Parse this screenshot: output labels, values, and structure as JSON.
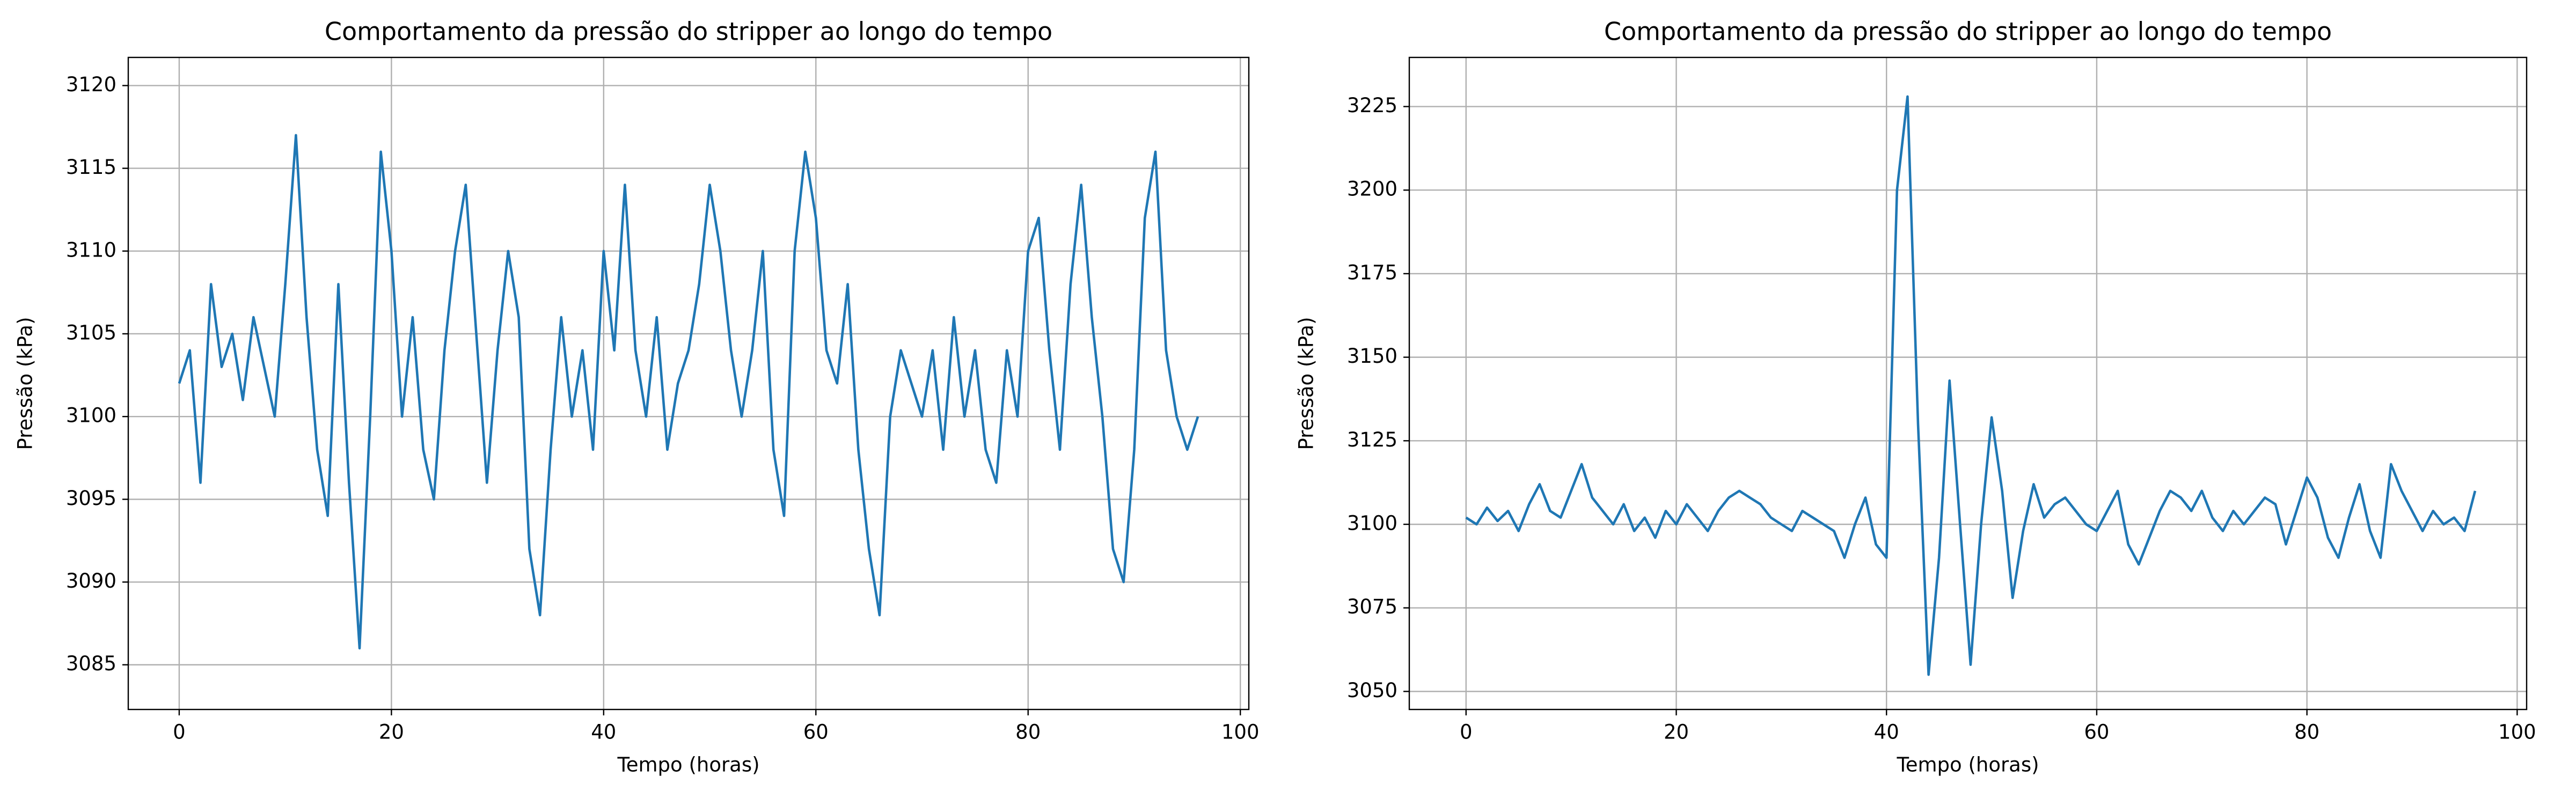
{
  "chart_data": [
    {
      "type": "line",
      "title": "Comportamento da pressão do stripper ao longo do tempo",
      "xlabel": "Tempo (horas)",
      "ylabel": "Pressão (kPa)",
      "x": [
        0,
        1,
        2,
        3,
        4,
        5,
        6,
        7,
        8,
        9,
        10,
        11,
        12,
        13,
        14,
        15,
        16,
        17,
        18,
        19,
        20,
        21,
        22,
        23,
        24,
        25,
        26,
        27,
        28,
        29,
        30,
        31,
        32,
        33,
        34,
        35,
        36,
        37,
        38,
        39,
        40,
        41,
        42,
        43,
        44,
        45,
        46,
        47,
        48,
        49,
        50,
        51,
        52,
        53,
        54,
        55,
        56,
        57,
        58,
        59,
        60,
        61,
        62,
        63,
        64,
        65,
        66,
        67,
        68,
        69,
        70,
        71,
        72,
        73,
        74,
        75,
        76,
        77,
        78,
        79,
        80,
        81,
        82,
        83,
        84,
        85,
        86,
        87,
        88,
        89,
        90,
        91,
        92,
        93,
        94,
        95,
        96
      ],
      "series": [
        {
          "color": "#1f77b4",
          "values": [
            3102,
            3104,
            3096,
            3108,
            3103,
            3105,
            3101,
            3106,
            3103,
            3100,
            3108,
            3117,
            3106,
            3098,
            3094,
            3108,
            3096,
            3086,
            3100,
            3116,
            3110,
            3100,
            3106,
            3098,
            3095,
            3104,
            3110,
            3114,
            3105,
            3096,
            3104,
            3110,
            3106,
            3092,
            3088,
            3098,
            3106,
            3100,
            3104,
            3098,
            3110,
            3104,
            3114,
            3104,
            3100,
            3106,
            3098,
            3102,
            3104,
            3108,
            3114,
            3110,
            3104,
            3100,
            3104,
            3110,
            3098,
            3094,
            3110,
            3116,
            3112,
            3104,
            3102,
            3108,
            3098,
            3092,
            3088,
            3100,
            3104,
            3102,
            3100,
            3104,
            3098,
            3106,
            3100,
            3104,
            3098,
            3096,
            3104,
            3100,
            3110,
            3112,
            3104,
            3098,
            3108,
            3114,
            3106,
            3100,
            3092,
            3090,
            3098,
            3112,
            3116,
            3104,
            3100,
            3098,
            3100
          ]
        }
      ],
      "xlim": [
        -4.8,
        100.8
      ],
      "xticks": [
        0,
        20,
        40,
        60,
        80,
        100
      ],
      "ylim": [
        3082.3,
        3121.7
      ],
      "yticks": [
        3085,
        3090,
        3095,
        3100,
        3105,
        3110,
        3115,
        3120
      ],
      "grid": true
    },
    {
      "type": "line",
      "title": "Comportamento da pressão do stripper ao longo do tempo",
      "xlabel": "Tempo (horas)",
      "ylabel": "Pressão (kPa)",
      "x": [
        0,
        1,
        2,
        3,
        4,
        5,
        6,
        7,
        8,
        9,
        10,
        11,
        12,
        13,
        14,
        15,
        16,
        17,
        18,
        19,
        20,
        21,
        22,
        23,
        24,
        25,
        26,
        27,
        28,
        29,
        30,
        31,
        32,
        33,
        34,
        35,
        36,
        37,
        38,
        39,
        40,
        41,
        42,
        43,
        44,
        45,
        46,
        47,
        48,
        49,
        50,
        51,
        52,
        53,
        54,
        55,
        56,
        57,
        58,
        59,
        60,
        61,
        62,
        63,
        64,
        65,
        66,
        67,
        68,
        69,
        70,
        71,
        72,
        73,
        74,
        75,
        76,
        77,
        78,
        79,
        80,
        81,
        82,
        83,
        84,
        85,
        86,
        87,
        88,
        89,
        90,
        91,
        92,
        93,
        94,
        95,
        96
      ],
      "series": [
        {
          "color": "#1f77b4",
          "values": [
            3102,
            3100,
            3105,
            3101,
            3104,
            3098,
            3106,
            3112,
            3104,
            3102,
            3110,
            3118,
            3108,
            3104,
            3100,
            3106,
            3098,
            3102,
            3096,
            3104,
            3100,
            3106,
            3102,
            3098,
            3104,
            3108,
            3110,
            3108,
            3106,
            3102,
            3100,
            3098,
            3104,
            3102,
            3100,
            3098,
            3090,
            3100,
            3108,
            3094,
            3090,
            3200,
            3228,
            3130,
            3055,
            3090,
            3143,
            3100,
            3058,
            3100,
            3132,
            3110,
            3078,
            3098,
            3112,
            3102,
            3106,
            3108,
            3104,
            3100,
            3098,
            3104,
            3110,
            3094,
            3088,
            3096,
            3104,
            3110,
            3108,
            3104,
            3110,
            3102,
            3098,
            3104,
            3100,
            3104,
            3108,
            3106,
            3094,
            3104,
            3114,
            3108,
            3096,
            3090,
            3102,
            3112,
            3098,
            3090,
            3118,
            3110,
            3104,
            3098,
            3104,
            3100,
            3102,
            3098,
            3110
          ]
        }
      ],
      "xlim": [
        -5.4,
        100.9
      ],
      "xticks": [
        0,
        20,
        40,
        60,
        80,
        100
      ],
      "ylim": [
        3044.6,
        3239.7
      ],
      "yticks": [
        3050,
        3075,
        3100,
        3125,
        3150,
        3175,
        3200,
        3225
      ],
      "grid": true
    }
  ]
}
